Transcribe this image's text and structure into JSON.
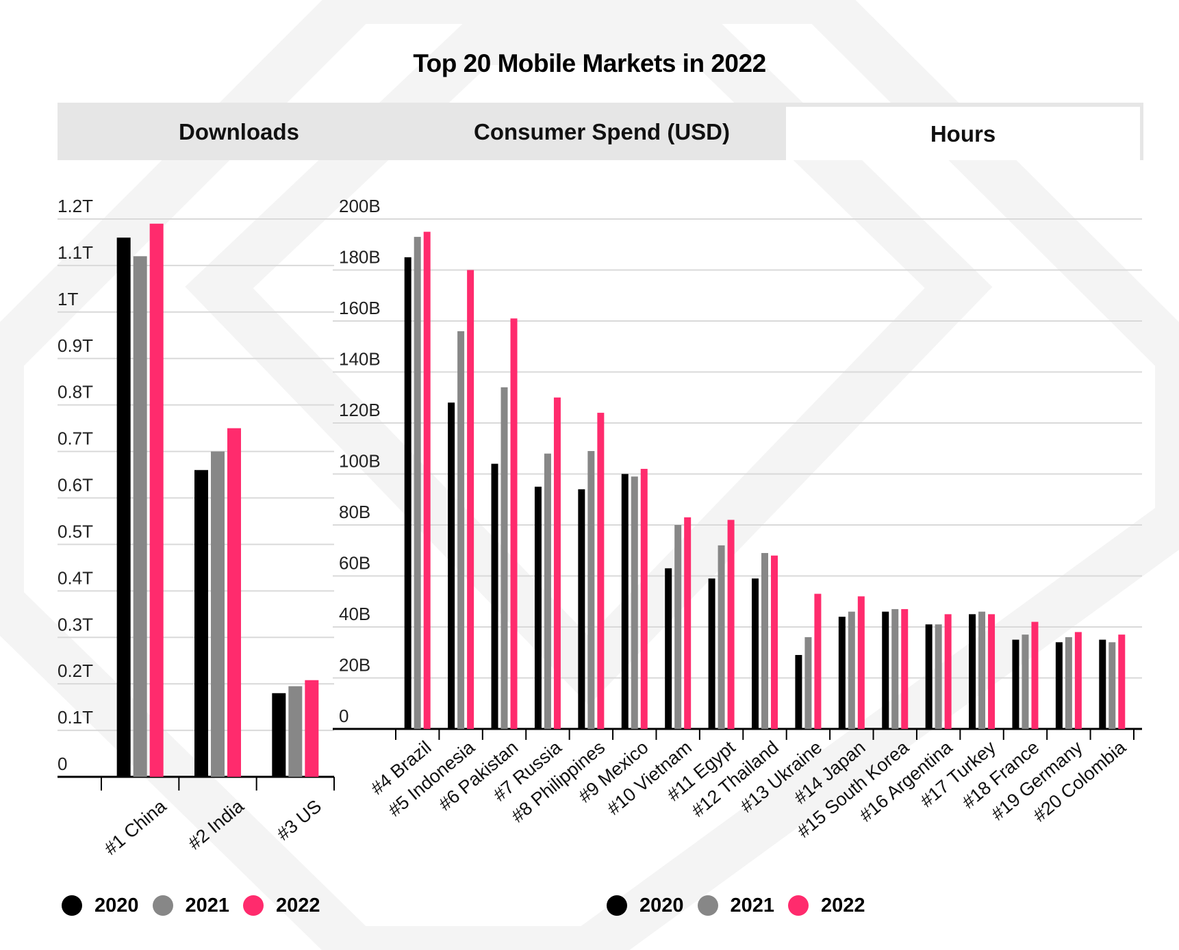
{
  "title": "Top 20 Mobile Markets in 2022",
  "tabs": [
    {
      "label": "Downloads",
      "active": false
    },
    {
      "label": "Consumer Spend (USD)",
      "active": false
    },
    {
      "label": "Hours",
      "active": true
    }
  ],
  "colors": {
    "2020": "#000000",
    "2021": "#878787",
    "2022": "#ff2b6d",
    "grid": "#d9d9d9",
    "axis": "#000000"
  },
  "chart_data": [
    {
      "type": "bar",
      "title": "",
      "categories": [
        "#1 China",
        "#2 India",
        "#3 US"
      ],
      "ylim": [
        0,
        1.2
      ],
      "yticks": [
        0,
        0.1,
        0.2,
        0.3,
        0.4,
        0.5,
        0.6,
        0.7,
        0.8,
        0.9,
        1.0,
        1.1,
        1.2
      ],
      "ytick_labels": [
        "0",
        "0.1T",
        "0.2T",
        "0.3T",
        "0.4T",
        "0.5T",
        "0.6T",
        "0.7T",
        "0.8T",
        "0.9T",
        "1T",
        "1.1T",
        "1.2T"
      ],
      "unit": "T",
      "series": [
        {
          "name": "2020",
          "values": [
            1.16,
            0.66,
            0.18
          ]
        },
        {
          "name": "2021",
          "values": [
            1.12,
            0.7,
            0.195
          ]
        },
        {
          "name": "2022",
          "values": [
            1.19,
            0.75,
            0.208
          ]
        }
      ],
      "legend": [
        "2020",
        "2021",
        "2022"
      ]
    },
    {
      "type": "bar",
      "title": "",
      "categories": [
        "#4 Brazil",
        "#5 Indonesia",
        "#6 Pakistan",
        "#7 Russia",
        "#8 Philippines",
        "#9 Mexico",
        "#10 Vietnam",
        "#11 Egypt",
        "#12 Thailand",
        "#13 Ukraine",
        "#14 Japan",
        "#15 South Korea",
        "#16 Argentina",
        "#17 Turkey",
        "#18 France",
        "#19 Germany",
        "#20 Colombia"
      ],
      "ylim": [
        0,
        200
      ],
      "yticks": [
        0,
        20,
        40,
        60,
        80,
        100,
        120,
        140,
        160,
        180,
        200
      ],
      "ytick_labels": [
        "0",
        "20B",
        "40B",
        "60B",
        "80B",
        "100B",
        "120B",
        "140B",
        "160B",
        "180B",
        "200B"
      ],
      "unit": "B",
      "series": [
        {
          "name": "2020",
          "values": [
            185,
            128,
            104,
            95,
            94,
            100,
            63,
            59,
            59,
            29,
            44,
            46,
            41,
            45,
            35,
            34,
            35
          ]
        },
        {
          "name": "2021",
          "values": [
            193,
            156,
            134,
            108,
            109,
            99,
            80,
            72,
            69,
            36,
            46,
            47,
            41,
            46,
            37,
            36,
            34
          ]
        },
        {
          "name": "2022",
          "values": [
            195,
            180,
            161,
            130,
            124,
            102,
            83,
            82,
            68,
            53,
            52,
            47,
            45,
            45,
            42,
            38,
            37
          ]
        }
      ],
      "legend": [
        "2020",
        "2021",
        "2022"
      ]
    }
  ]
}
